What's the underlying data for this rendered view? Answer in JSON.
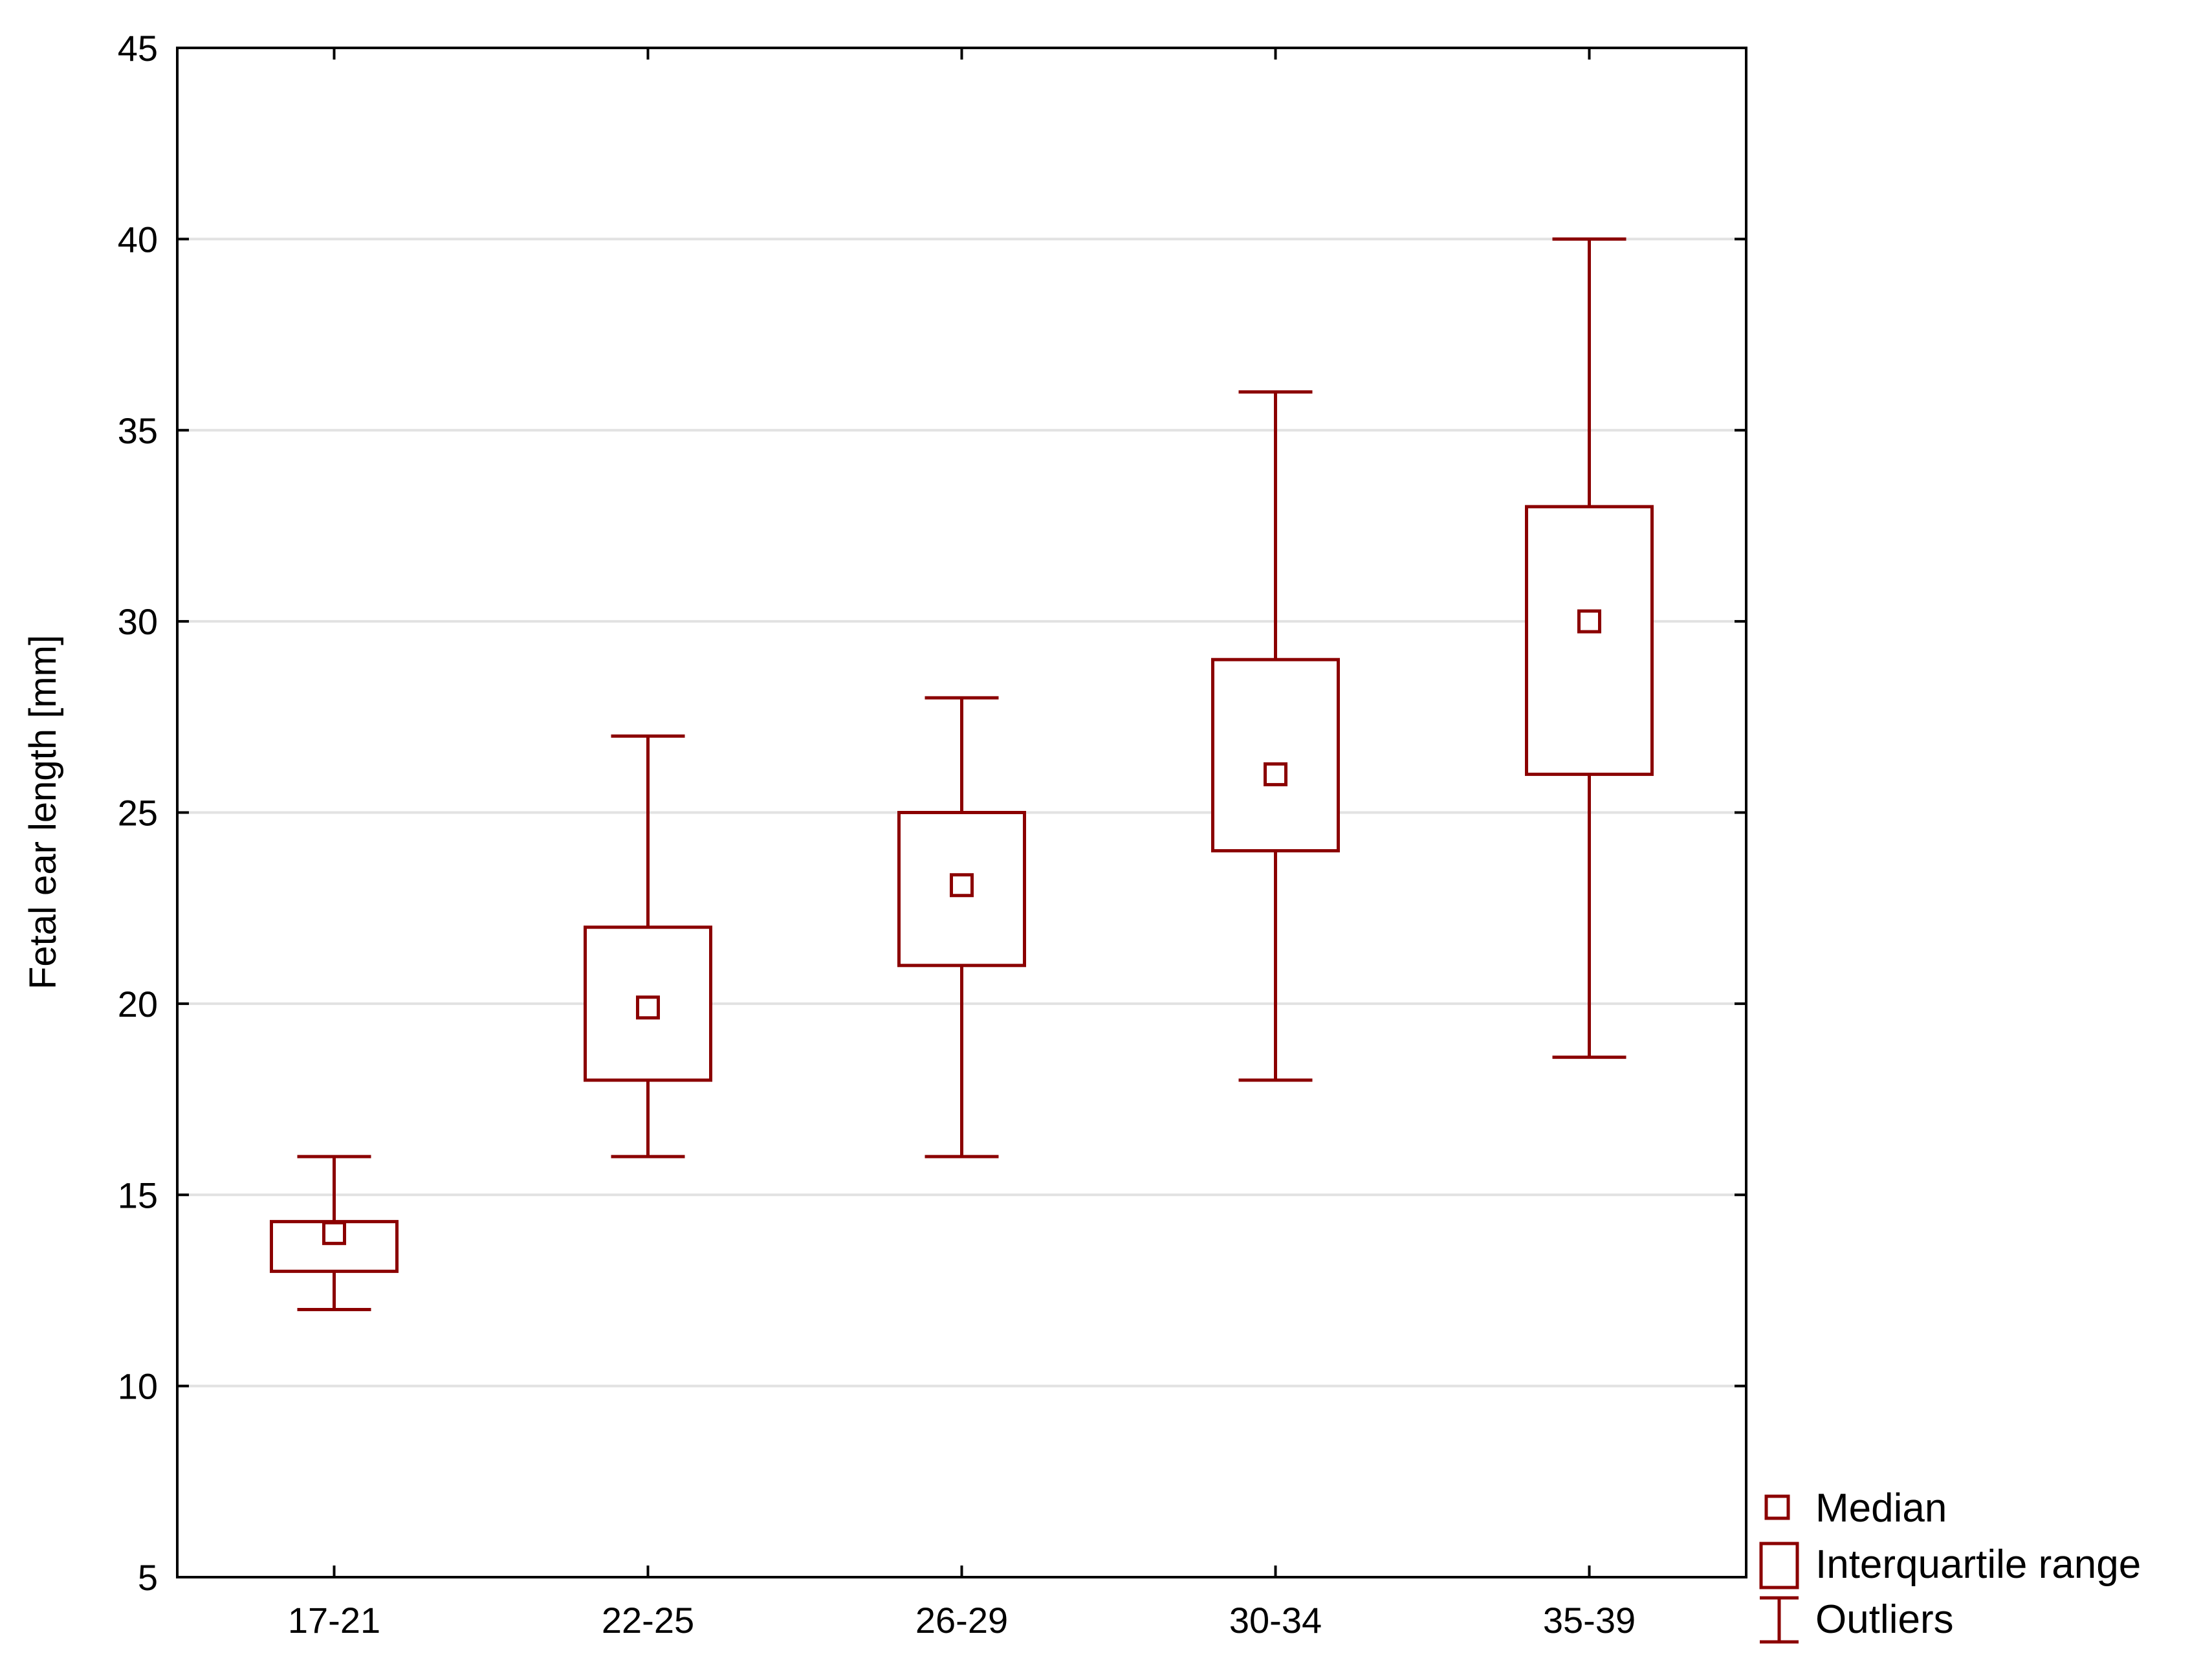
{
  "chart_data": {
    "type": "boxplot",
    "title": "",
    "xlabel": "",
    "ylabel": "Fetal ear length [mm]",
    "ylim": [
      5,
      45
    ],
    "yticks": [
      5,
      10,
      15,
      20,
      25,
      30,
      35,
      40,
      45
    ],
    "grid": true,
    "legend_position": "bottom-right, outside plot",
    "color": "#8b0000",
    "categories": [
      "17-21",
      "22-25",
      "26-29",
      "30-34",
      "35-39"
    ],
    "boxes": [
      {
        "category": "17-21",
        "min": 12,
        "q1": 13,
        "median": 14,
        "q3": 14.3,
        "max": 16
      },
      {
        "category": "22-25",
        "min": 16,
        "q1": 18,
        "median": 19.9,
        "q3": 22,
        "max": 27
      },
      {
        "category": "26-29",
        "min": 16,
        "q1": 21,
        "median": 23.1,
        "q3": 25,
        "max": 28
      },
      {
        "category": "30-34",
        "min": 18,
        "q1": 24,
        "median": 26,
        "q3": 29,
        "max": 36
      },
      {
        "category": "35-39",
        "min": 18.6,
        "q1": 26,
        "median": 30,
        "q3": 33,
        "max": 40
      }
    ],
    "legend": {
      "median": "Median",
      "iqr": "Interquartile range",
      "outliers": "Outliers"
    }
  }
}
